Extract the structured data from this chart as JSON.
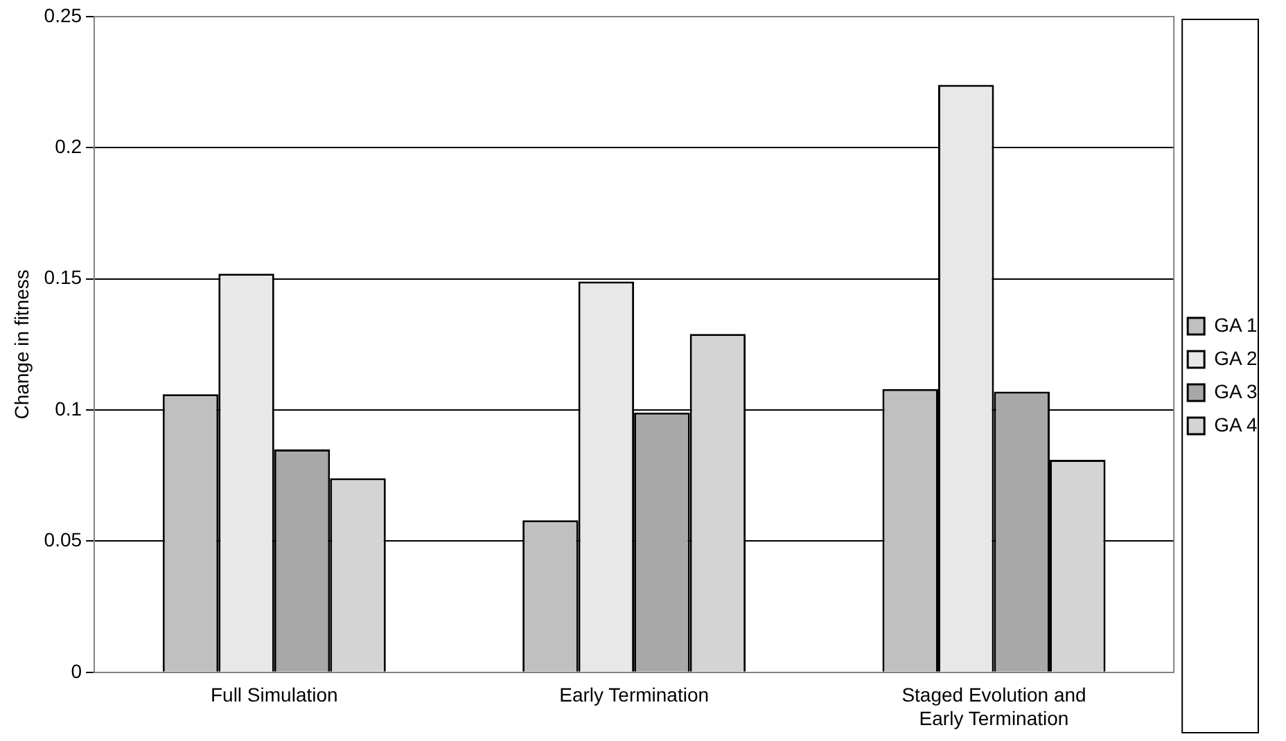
{
  "chart_data": {
    "type": "bar",
    "ylabel": "Change in fitness",
    "categories": [
      "Full Simulation",
      "Early Termination",
      "Staged Evolution and Early Termination"
    ],
    "series": [
      {
        "name": "GA 1",
        "color": "#c0c0c0",
        "values": [
          0.106,
          0.058,
          0.108
        ]
      },
      {
        "name": "GA 2",
        "color": "#e8e8e8",
        "values": [
          0.152,
          0.149,
          0.224
        ]
      },
      {
        "name": "GA 3",
        "color": "#a8a8a8",
        "values": [
          0.085,
          0.099,
          0.107
        ]
      },
      {
        "name": "GA 4",
        "color": "#d4d4d4",
        "values": [
          0.074,
          0.129,
          0.081
        ]
      }
    ],
    "ylim": [
      0,
      0.25
    ],
    "yticks": [
      0,
      0.05,
      0.1,
      0.15,
      0.2,
      0.25
    ],
    "grid": "y",
    "legend": "right"
  }
}
